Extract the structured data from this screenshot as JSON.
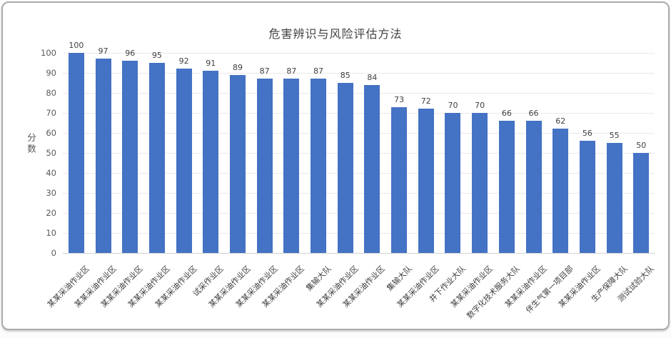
{
  "chart_data": {
    "type": "bar",
    "title": "危害辨识与风险评估方法",
    "xlabel": "",
    "ylabel": "分数",
    "ylim": [
      0,
      100
    ],
    "ytick_step": 10,
    "grid": true,
    "legend": false,
    "bar_color": "#4472c4",
    "categories": [
      "某某采油作业区",
      "某某采油作业区",
      "某某采油作业区",
      "某某采油作业区",
      "某某采油作业区",
      "试采作业区",
      "某某采油作业区",
      "某某采油作业区",
      "某某采油作业区",
      "集输大队",
      "某某采油作业区",
      "某某采油作业区",
      "集输大队",
      "某某采油作业区",
      "井下作业大队",
      "某某采油作业区",
      "数字化技术服务大队",
      "某某采油作业区",
      "伴生气第一项目部",
      "某某采油作业区",
      "生产保障大队",
      "测试试验大队"
    ],
    "values": [
      100,
      97,
      96,
      95,
      92,
      91,
      89,
      87,
      87,
      87,
      85,
      84,
      73,
      72,
      70,
      70,
      66,
      66,
      62,
      56,
      55,
      50
    ]
  }
}
